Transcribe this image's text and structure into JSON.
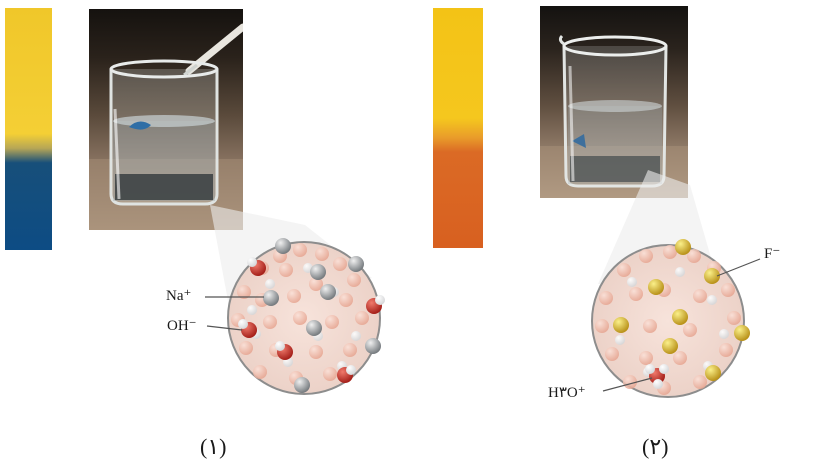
{
  "panels": [
    {
      "caption": "(۱)",
      "labels": {
        "ion_a": "Na⁺",
        "ion_b": "OH⁻"
      },
      "colors": {
        "indicator_top": "#f2cb2e",
        "indicator_bottom": "#0d4c84"
      }
    },
    {
      "caption": "(۲)",
      "labels": {
        "ion_a": "F⁻",
        "ion_b": "H۳O⁺"
      },
      "colors": {
        "indicator_top": "#f3c316",
        "indicator_bottom": "#d86020"
      }
    }
  ]
}
